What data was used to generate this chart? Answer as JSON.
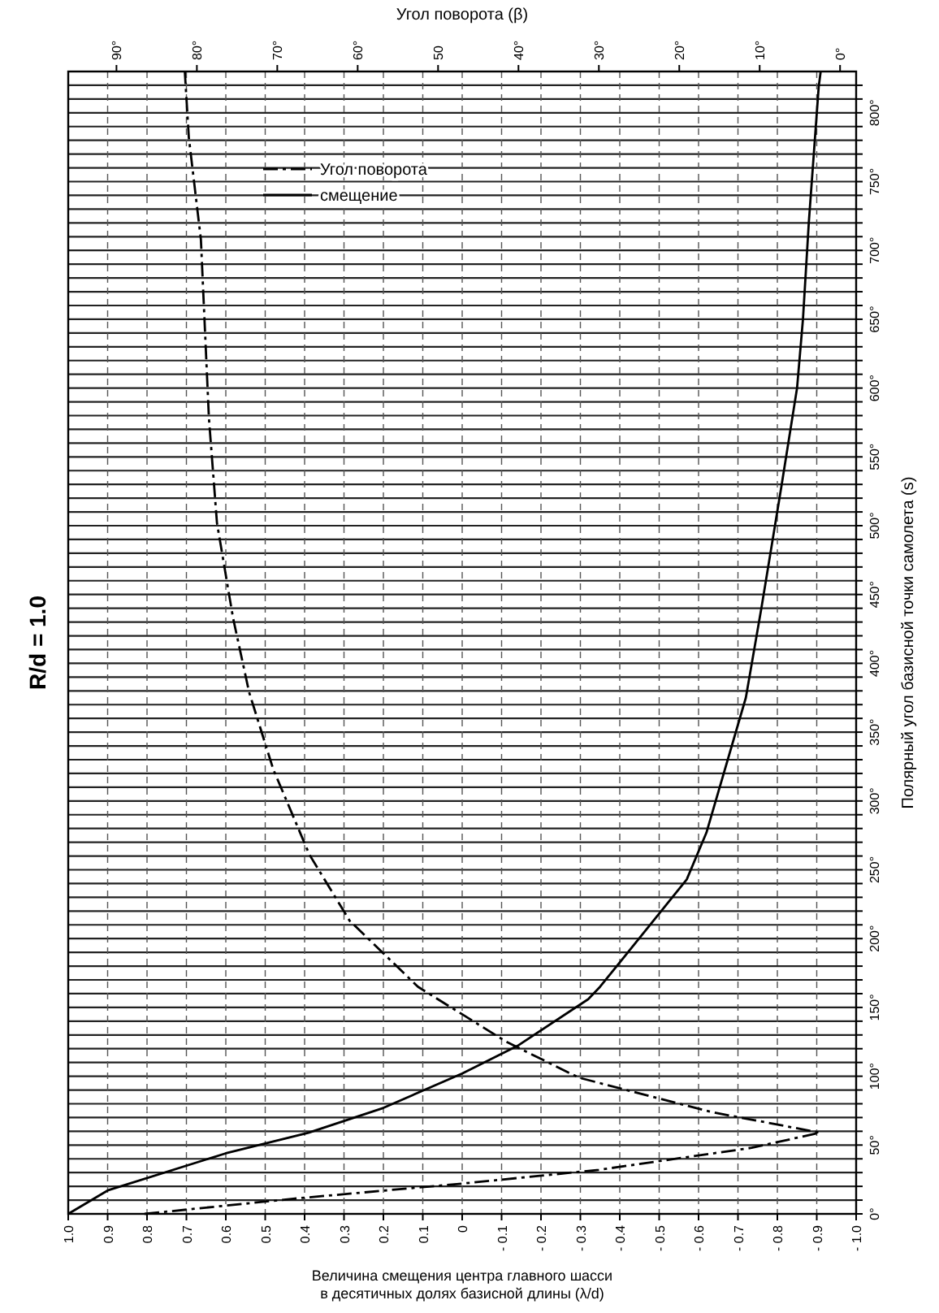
{
  "chart_data": {
    "type": "line",
    "title": "R/d = 1.0",
    "xlabel": "Величина смещения центра главного шасси\nв десятичных долях базисной длины (λ/d)",
    "ylabel": "Полярный угол базисной точки самолета (s)",
    "x2label": "Угол поворота (β)",
    "xlim": [
      1.0,
      -1.0
    ],
    "x2lim": [
      96,
      -2
    ],
    "ylim": [
      0,
      830
    ],
    "yticks": [
      {
        "value": 0,
        "label": "0°"
      },
      {
        "value": 10,
        "label": null
      },
      {
        "value": 20,
        "label": null
      },
      {
        "value": 30,
        "label": null
      },
      {
        "value": 40,
        "label": null
      },
      {
        "value": 50,
        "label": "50°"
      },
      {
        "value": 60,
        "label": null
      },
      {
        "value": 70,
        "label": null
      },
      {
        "value": 80,
        "label": null
      },
      {
        "value": 90,
        "label": null
      },
      {
        "value": 100,
        "label": "100°"
      },
      {
        "value": 110,
        "label": null
      },
      {
        "value": 120,
        "label": null
      },
      {
        "value": 130,
        "label": null
      },
      {
        "value": 140,
        "label": null
      },
      {
        "value": 150,
        "label": "150°"
      },
      {
        "value": 160,
        "label": null
      },
      {
        "value": 170,
        "label": null
      },
      {
        "value": 180,
        "label": null
      },
      {
        "value": 190,
        "label": null
      },
      {
        "value": 200,
        "label": "200°"
      },
      {
        "value": 210,
        "label": null
      },
      {
        "value": 220,
        "label": null
      },
      {
        "value": 230,
        "label": null
      },
      {
        "value": 240,
        "label": null
      },
      {
        "value": 250,
        "label": "250°"
      },
      {
        "value": 260,
        "label": null
      },
      {
        "value": 270,
        "label": null
      },
      {
        "value": 280,
        "label": null
      },
      {
        "value": 290,
        "label": null
      },
      {
        "value": 300,
        "label": "300°"
      },
      {
        "value": 310,
        "label": null
      },
      {
        "value": 320,
        "label": null
      },
      {
        "value": 330,
        "label": null
      },
      {
        "value": 340,
        "label": null
      },
      {
        "value": 350,
        "label": "350°"
      },
      {
        "value": 360,
        "label": null
      },
      {
        "value": 370,
        "label": null
      },
      {
        "value": 380,
        "label": null
      },
      {
        "value": 390,
        "label": null
      },
      {
        "value": 400,
        "label": "400°"
      },
      {
        "value": 410,
        "label": null
      },
      {
        "value": 420,
        "label": null
      },
      {
        "value": 430,
        "label": null
      },
      {
        "value": 440,
        "label": null
      },
      {
        "value": 450,
        "label": "450°"
      },
      {
        "value": 460,
        "label": null
      },
      {
        "value": 470,
        "label": null
      },
      {
        "value": 480,
        "label": null
      },
      {
        "value": 490,
        "label": null
      },
      {
        "value": 500,
        "label": "500°"
      },
      {
        "value": 510,
        "label": null
      },
      {
        "value": 520,
        "label": null
      },
      {
        "value": 530,
        "label": null
      },
      {
        "value": 540,
        "label": null
      },
      {
        "value": 550,
        "label": "550°"
      },
      {
        "value": 560,
        "label": null
      },
      {
        "value": 570,
        "label": null
      },
      {
        "value": 580,
        "label": null
      },
      {
        "value": 590,
        "label": null
      },
      {
        "value": 600,
        "label": "600°"
      },
      {
        "value": 610,
        "label": null
      },
      {
        "value": 620,
        "label": null
      },
      {
        "value": 630,
        "label": null
      },
      {
        "value": 640,
        "label": null
      },
      {
        "value": 650,
        "label": "650°"
      },
      {
        "value": 660,
        "label": null
      },
      {
        "value": 670,
        "label": null
      },
      {
        "value": 680,
        "label": null
      },
      {
        "value": 690,
        "label": null
      },
      {
        "value": 700,
        "label": "700°"
      },
      {
        "value": 710,
        "label": null
      },
      {
        "value": 720,
        "label": null
      },
      {
        "value": 730,
        "label": null
      },
      {
        "value": 740,
        "label": null
      },
      {
        "value": 750,
        "label": "750°"
      },
      {
        "value": 760,
        "label": null
      },
      {
        "value": 770,
        "label": null
      },
      {
        "value": 780,
        "label": null
      },
      {
        "value": 790,
        "label": null
      },
      {
        "value": 800,
        "label": "800°"
      },
      {
        "value": 810,
        "label": null
      },
      {
        "value": 820,
        "label": null
      }
    ],
    "xticks": [
      {
        "value": 1.0,
        "label": "1.0"
      },
      0.9,
      0.8,
      0.7,
      0.6,
      0.5,
      0.4,
      0.3,
      0.2,
      0.1,
      0,
      {
        "value": -0.1,
        "label": "- 0.1"
      },
      {
        "value": -0.2,
        "label": "- 0.2"
      },
      {
        "value": -0.3,
        "label": "- 0.3"
      },
      {
        "value": -0.4,
        "label": "- 0.4"
      },
      {
        "value": -0.5,
        "label": "- 0.5"
      },
      {
        "value": -0.6,
        "label": "- 0.6"
      },
      {
        "value": -0.7,
        "label": "- 0.7"
      },
      {
        "value": -0.8,
        "label": "- 0.8"
      },
      {
        "value": -0.9,
        "label": "- 0.9"
      },
      {
        "value": -1.0,
        "label": "- 1.0"
      }
    ],
    "x2ticks": [
      {
        "value": 90,
        "label": "90°"
      },
      {
        "value": 80,
        "label": "80°"
      },
      {
        "value": 70,
        "label": "70°"
      },
      {
        "value": 60,
        "label": "60°"
      },
      50,
      {
        "value": 40,
        "label": "40°"
      },
      {
        "value": 30,
        "label": "30°"
      },
      {
        "value": 20,
        "label": "20°"
      },
      {
        "value": 10,
        "label": "10°"
      },
      {
        "value": 0,
        "label": "0°"
      }
    ],
    "grid": true,
    "legend": "top left",
    "series": [
      {
        "name": "Угол поворота",
        "color": "#000000",
        "axis": "x2",
        "line_style": "dashed",
        "x": [
          86.5,
          68,
          47,
          30,
          11,
          2.5,
          16,
          32.5,
          41.5,
          52.5,
          61,
          66,
          70.5,
          73.5,
          75.5,
          77.5,
          78.5,
          79.5,
          81,
          81.5
        ],
        "values": [
          0,
          11,
          22,
          32,
          48,
          59,
          74,
          99,
          125,
          165,
          213,
          261,
          323,
          379,
          433,
          502,
          578,
          708,
          782,
          830
        ]
      },
      {
        "name": "смещение",
        "color": "#000000",
        "line_style": "solid",
        "x": [
          1.0,
          0.9,
          0.6,
          0.39,
          0.2,
          0,
          -0.14,
          -0.32,
          -0.35,
          -0.57,
          -0.62,
          -0.72,
          -0.76,
          -0.81,
          -0.85,
          -0.865,
          -0.88,
          -0.905,
          -0.91
        ],
        "values": [
          0,
          17,
          44,
          59,
          77,
          102,
          122,
          156,
          165,
          243,
          277,
          375,
          441,
          528,
          600,
          650,
          721,
          819,
          830
        ]
      }
    ]
  }
}
